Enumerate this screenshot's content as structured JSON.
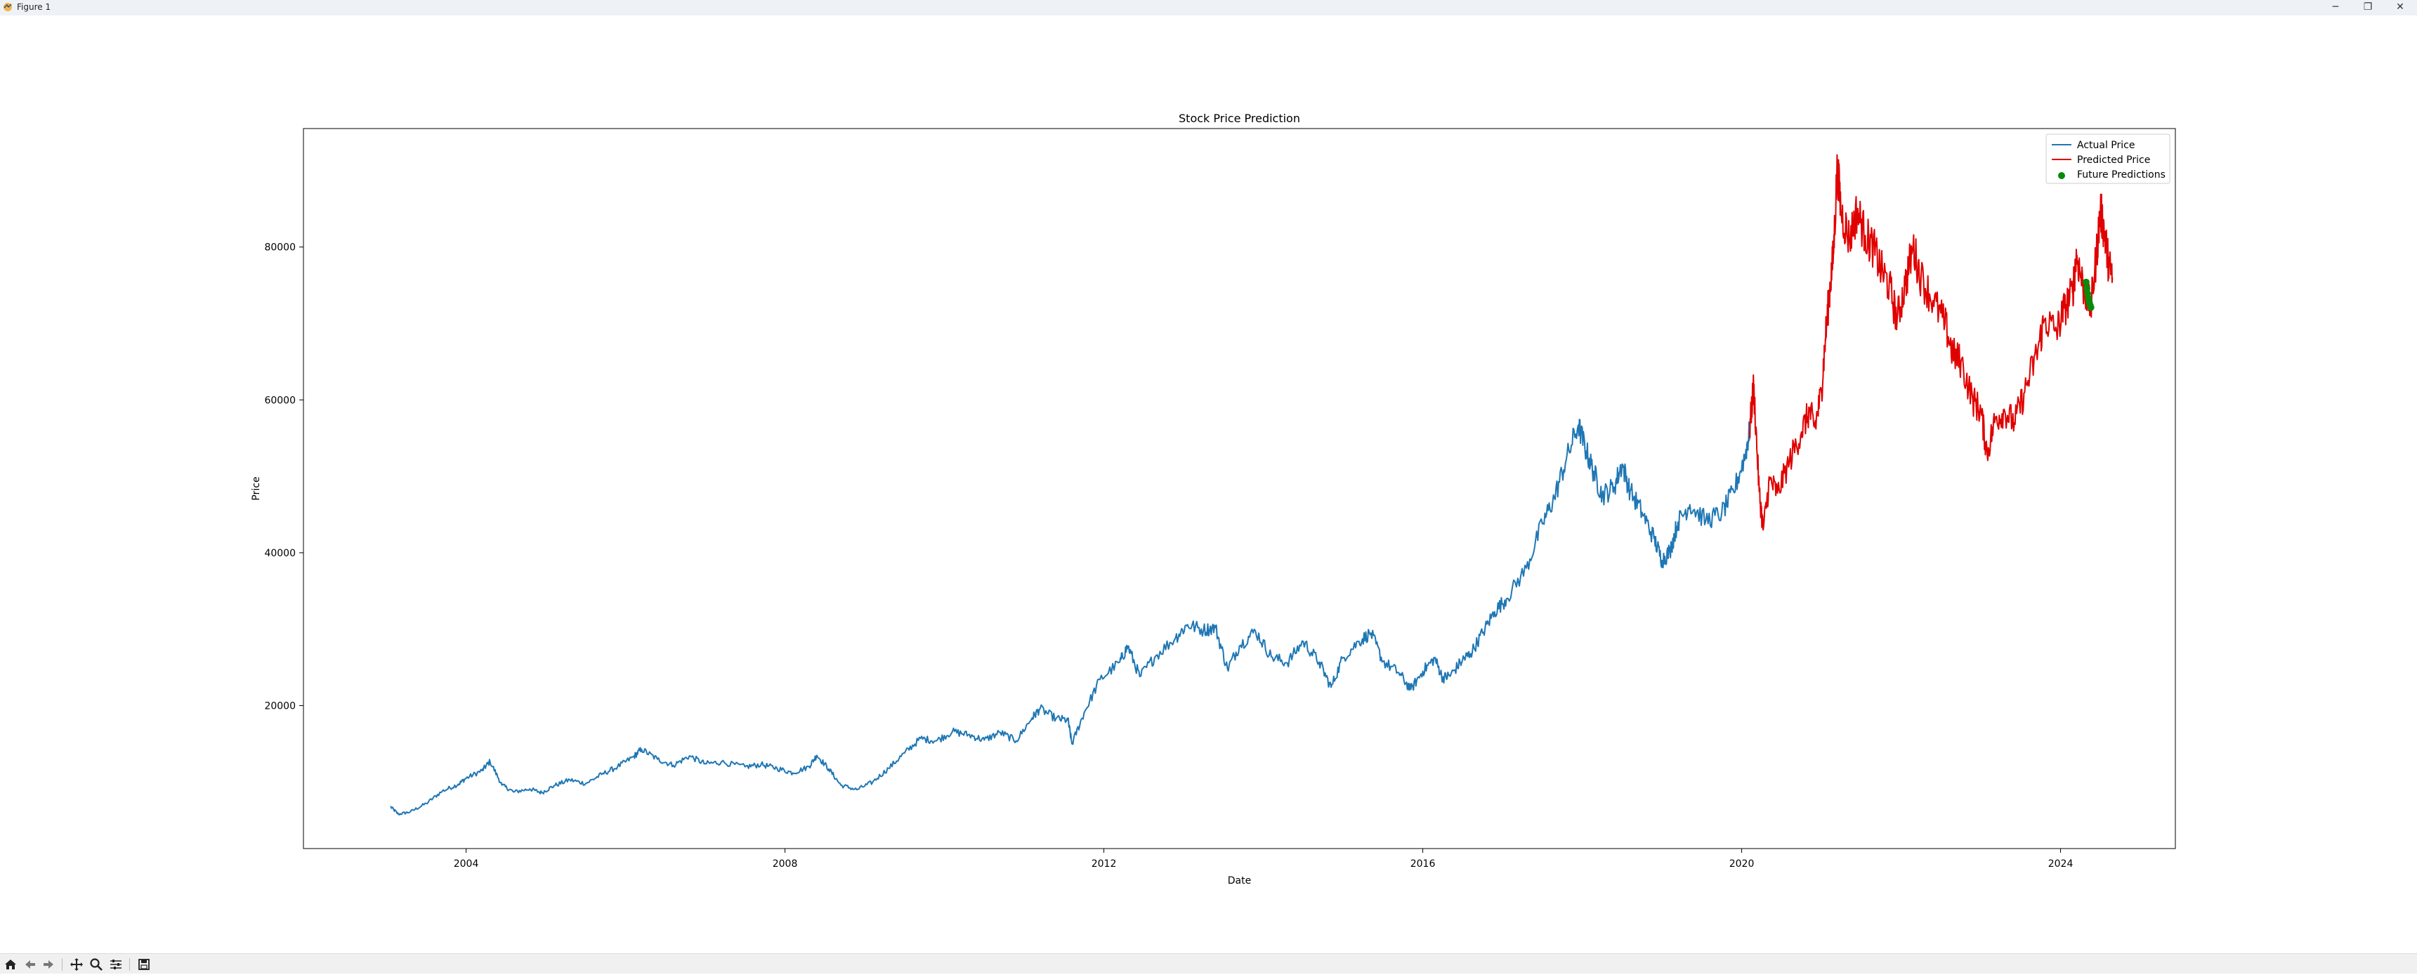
{
  "window": {
    "title": "Figure 1",
    "minimize": "─",
    "maximize": "❐",
    "close": "✕"
  },
  "toolbar": {
    "tools": [
      "home-icon",
      "back-icon",
      "forward-icon",
      "pan-icon",
      "zoom-icon",
      "configure-subplots-icon",
      "save-icon"
    ]
  },
  "colors": {
    "actual": "#1f77b4",
    "predicted": "#e00000",
    "future": "#0a8a0a"
  },
  "chart_data": {
    "type": "line",
    "title": "Stock Price Prediction",
    "xlabel": "Date",
    "ylabel": "Price",
    "xlim": [
      2001.96,
      2025.44
    ],
    "ylim": [
      1300,
      95500
    ],
    "xticks": [
      2004,
      2008,
      2012,
      2016,
      2020,
      2024
    ],
    "xtick_labels": [
      "2004",
      "2008",
      "2012",
      "2016",
      "2020",
      "2024"
    ],
    "yticks": [
      20000,
      40000,
      60000,
      80000
    ],
    "ytick_labels": [
      "20000",
      "40000",
      "60000",
      "80000"
    ],
    "legend": {
      "position": "top-right",
      "entries": [
        "Actual Price",
        "Predicted Price",
        "Future Predictions"
      ]
    },
    "grid": false,
    "series": [
      {
        "name": "Actual Price",
        "kind": "line",
        "points": [
          [
            2003.05,
            6800
          ],
          [
            2003.15,
            5800
          ],
          [
            2003.3,
            6100
          ],
          [
            2003.5,
            7200
          ],
          [
            2003.7,
            8800
          ],
          [
            2003.9,
            9700
          ],
          [
            2004.0,
            10500
          ],
          [
            2004.2,
            11500
          ],
          [
            2004.3,
            12700
          ],
          [
            2004.45,
            9600
          ],
          [
            2004.6,
            8700
          ],
          [
            2004.8,
            9100
          ],
          [
            2004.95,
            8600
          ],
          [
            2005.1,
            9500
          ],
          [
            2005.3,
            10300
          ],
          [
            2005.5,
            9800
          ],
          [
            2005.7,
            11000
          ],
          [
            2005.9,
            12000
          ],
          [
            2006.1,
            13300
          ],
          [
            2006.2,
            14300
          ],
          [
            2006.4,
            13000
          ],
          [
            2006.6,
            12200
          ],
          [
            2006.8,
            13400
          ],
          [
            2007.0,
            12400
          ],
          [
            2007.2,
            12600
          ],
          [
            2007.5,
            12000
          ],
          [
            2007.7,
            12300
          ],
          [
            2007.9,
            11800
          ],
          [
            2008.1,
            11200
          ],
          [
            2008.3,
            12000
          ],
          [
            2008.4,
            13500
          ],
          [
            2008.55,
            11700
          ],
          [
            2008.7,
            9600
          ],
          [
            2008.9,
            9000
          ],
          [
            2009.1,
            10000
          ],
          [
            2009.3,
            11800
          ],
          [
            2009.5,
            13800
          ],
          [
            2009.7,
            15700
          ],
          [
            2009.9,
            15400
          ],
          [
            2010.1,
            16600
          ],
          [
            2010.3,
            16200
          ],
          [
            2010.5,
            15500
          ],
          [
            2010.7,
            16500
          ],
          [
            2010.9,
            15400
          ],
          [
            2011.1,
            18400
          ],
          [
            2011.2,
            19600
          ],
          [
            2011.4,
            18300
          ],
          [
            2011.55,
            18100
          ],
          [
            2011.6,
            15000
          ],
          [
            2011.75,
            19000
          ],
          [
            2011.95,
            23400
          ],
          [
            2012.2,
            25700
          ],
          [
            2012.3,
            27800
          ],
          [
            2012.45,
            23800
          ],
          [
            2012.65,
            26500
          ],
          [
            2012.9,
            28900
          ],
          [
            2013.05,
            30600
          ],
          [
            2013.25,
            29900
          ],
          [
            2013.4,
            30200
          ],
          [
            2013.55,
            24800
          ],
          [
            2013.7,
            27800
          ],
          [
            2013.9,
            29800
          ],
          [
            2014.1,
            26400
          ],
          [
            2014.3,
            25600
          ],
          [
            2014.5,
            28400
          ],
          [
            2014.7,
            25700
          ],
          [
            2014.85,
            22400
          ],
          [
            2015.0,
            26300
          ],
          [
            2015.2,
            28400
          ],
          [
            2015.35,
            29500
          ],
          [
            2015.5,
            25800
          ],
          [
            2015.7,
            24300
          ],
          [
            2015.85,
            22100
          ],
          [
            2016.0,
            24500
          ],
          [
            2016.15,
            26200
          ],
          [
            2016.25,
            23600
          ],
          [
            2016.35,
            24000
          ],
          [
            2016.5,
            26000
          ],
          [
            2016.6,
            26800
          ],
          [
            2016.75,
            29500
          ],
          [
            2016.9,
            32300
          ],
          [
            2017.05,
            34000
          ],
          [
            2017.3,
            38000
          ],
          [
            2017.5,
            43800
          ],
          [
            2017.65,
            47200
          ],
          [
            2017.8,
            52200
          ],
          [
            2017.95,
            56700
          ],
          [
            2018.05,
            53300
          ],
          [
            2018.15,
            50400
          ],
          [
            2018.25,
            47500
          ],
          [
            2018.4,
            48600
          ],
          [
            2018.5,
            51600
          ],
          [
            2018.6,
            48100
          ],
          [
            2018.75,
            45300
          ],
          [
            2018.9,
            41900
          ],
          [
            2019.0,
            39000
          ],
          [
            2019.1,
            40200
          ],
          [
            2019.2,
            44000
          ],
          [
            2019.35,
            46300
          ],
          [
            2019.55,
            44200
          ],
          [
            2019.75,
            45200
          ],
          [
            2019.9,
            48000
          ],
          [
            2020.05,
            53000
          ],
          [
            2020.1,
            56000
          ]
        ]
      },
      {
        "name": "Predicted Price",
        "kind": "line",
        "points": [
          [
            2020.1,
            56000
          ],
          [
            2020.15,
            62000
          ],
          [
            2020.22,
            48000
          ],
          [
            2020.27,
            43000
          ],
          [
            2020.35,
            49500
          ],
          [
            2020.45,
            47800
          ],
          [
            2020.6,
            52000
          ],
          [
            2020.75,
            55800
          ],
          [
            2020.85,
            58500
          ],
          [
            2020.92,
            56500
          ],
          [
            2021.0,
            61000
          ],
          [
            2021.05,
            68000
          ],
          [
            2021.1,
            74000
          ],
          [
            2021.15,
            79000
          ],
          [
            2021.2,
            90500
          ],
          [
            2021.25,
            84500
          ],
          [
            2021.35,
            81000
          ],
          [
            2021.45,
            84800
          ],
          [
            2021.55,
            81500
          ],
          [
            2021.65,
            80000
          ],
          [
            2021.75,
            77000
          ],
          [
            2021.85,
            75000
          ],
          [
            2021.95,
            70500
          ],
          [
            2022.05,
            75000
          ],
          [
            2022.15,
            80000
          ],
          [
            2022.25,
            76000
          ],
          [
            2022.4,
            73000
          ],
          [
            2022.55,
            70000
          ],
          [
            2022.65,
            66000
          ],
          [
            2022.75,
            65000
          ],
          [
            2022.9,
            60000
          ],
          [
            2023.0,
            58500
          ],
          [
            2023.08,
            53000
          ],
          [
            2023.18,
            57500
          ],
          [
            2023.3,
            58500
          ],
          [
            2023.42,
            57000
          ],
          [
            2023.55,
            61000
          ],
          [
            2023.7,
            66000
          ],
          [
            2023.8,
            70500
          ],
          [
            2023.95,
            69000
          ],
          [
            2024.05,
            72000
          ],
          [
            2024.15,
            74000
          ],
          [
            2024.2,
            79000
          ],
          [
            2024.28,
            75000
          ],
          [
            2024.38,
            72000
          ],
          [
            2024.45,
            79000
          ],
          [
            2024.5,
            84800
          ],
          [
            2024.55,
            82000
          ],
          [
            2024.6,
            78000
          ],
          [
            2024.65,
            76000
          ]
        ]
      },
      {
        "name": "Future Predictions",
        "kind": "scatter",
        "points": [
          [
            2024.32,
            75400
          ],
          [
            2024.33,
            74600
          ],
          [
            2024.34,
            73900
          ],
          [
            2024.35,
            73300
          ],
          [
            2024.36,
            72800
          ],
          [
            2024.37,
            72400
          ],
          [
            2024.38,
            72100
          ]
        ]
      }
    ]
  }
}
